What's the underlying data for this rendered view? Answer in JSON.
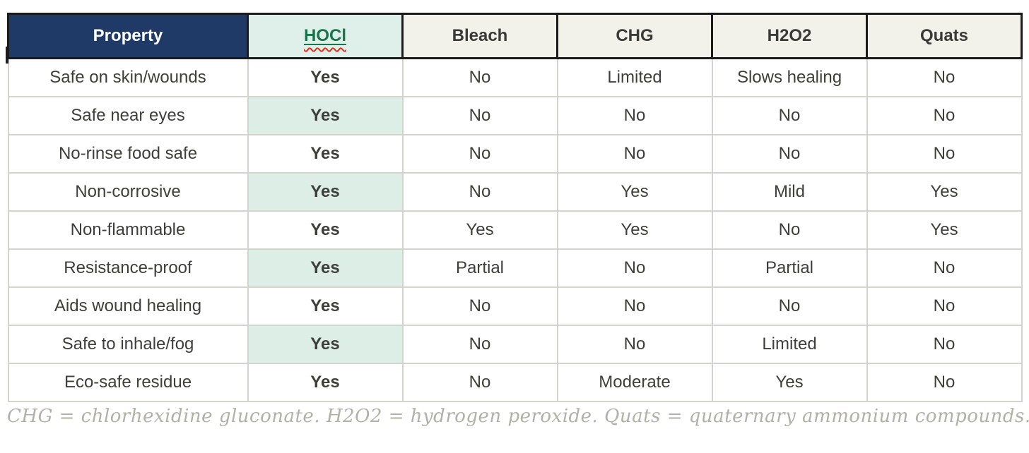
{
  "colors": {
    "header_navy": "#1f3a67",
    "header_gray": "#f2f1ea",
    "header_text": "#3a3a37",
    "mint_header": "#dff0ea",
    "mint_light": "#e9f4ef",
    "mint_striped": "#ddeee7",
    "stripe": "#f4f3ed",
    "green": "#17764a",
    "dark_text": "#3e3e3a",
    "muted_text": "#a9a89e",
    "body_border": "#d4d4ce",
    "header_border": "#1b1b1b",
    "caption_text": "#b2b1a6",
    "spellcheck_red": "#e0301e"
  },
  "table": {
    "columns": [
      "Property",
      "HOCl",
      "Bleach",
      "CHG",
      "H2O2",
      "Quats"
    ],
    "rows": [
      {
        "property": "Safe on skin/wounds",
        "values": [
          {
            "text": "Yes"
          },
          {
            "text": "No",
            "muted": true
          },
          {
            "text": "Limited"
          },
          {
            "text": "Slows healing"
          },
          {
            "text": "No",
            "muted": true
          }
        ]
      },
      {
        "property": "Safe near eyes",
        "values": [
          {
            "text": "Yes"
          },
          {
            "text": "No",
            "muted": true
          },
          {
            "text": "No",
            "muted": true
          },
          {
            "text": "No",
            "muted": true
          },
          {
            "text": "No",
            "muted": true
          }
        ]
      },
      {
        "property": "No-rinse food safe",
        "values": [
          {
            "text": "Yes"
          },
          {
            "text": "No",
            "muted": true
          },
          {
            "text": "No",
            "muted": true
          },
          {
            "text": "No",
            "muted": true
          },
          {
            "text": "No",
            "muted": true
          }
        ]
      },
      {
        "property": "Non-corrosive",
        "values": [
          {
            "text": "Yes"
          },
          {
            "text": "No",
            "muted": true
          },
          {
            "text": "Yes"
          },
          {
            "text": "Mild"
          },
          {
            "text": "Yes"
          }
        ]
      },
      {
        "property": "Non-flammable",
        "values": [
          {
            "text": "Yes"
          },
          {
            "text": "Yes"
          },
          {
            "text": "Yes"
          },
          {
            "text": "No",
            "muted": true
          },
          {
            "text": "Yes"
          }
        ]
      },
      {
        "property": "Resistance-proof",
        "values": [
          {
            "text": "Yes"
          },
          {
            "text": "Partial"
          },
          {
            "text": "No",
            "muted": true
          },
          {
            "text": "Partial"
          },
          {
            "text": "No",
            "muted": true
          }
        ]
      },
      {
        "property": "Aids wound healing",
        "values": [
          {
            "text": "Yes"
          },
          {
            "text": "No",
            "muted": true
          },
          {
            "text": "No",
            "muted": true
          },
          {
            "text": "No",
            "muted": true
          },
          {
            "text": "No",
            "muted": true
          }
        ]
      },
      {
        "property": "Safe to inhale/fog",
        "values": [
          {
            "text": "Yes"
          },
          {
            "text": "No",
            "muted": true
          },
          {
            "text": "No",
            "muted": true
          },
          {
            "text": "Limited"
          },
          {
            "text": "No",
            "muted": true
          }
        ]
      },
      {
        "property": "Eco-safe residue",
        "values": [
          {
            "text": "Yes"
          },
          {
            "text": "No",
            "muted": true
          },
          {
            "text": "Moderate"
          },
          {
            "text": "Yes"
          },
          {
            "text": "No",
            "muted": true
          }
        ]
      }
    ]
  },
  "caption": "CHG = chlorhexidine gluconate. H2O2 = hydrogen peroxide. Quats = quaternary ammonium compounds."
}
